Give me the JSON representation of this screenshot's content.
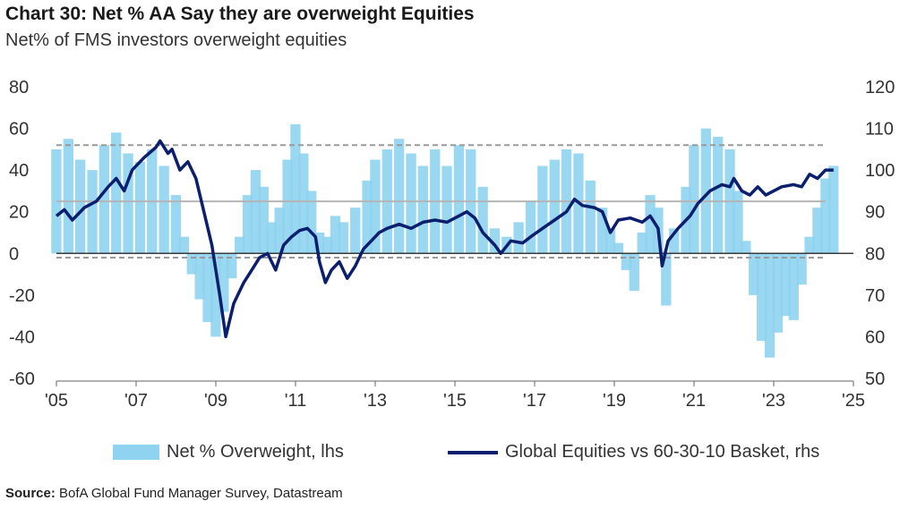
{
  "chart_data": {
    "type": "bar+line",
    "title": "Chart 30: Net % AA Say they are overweight Equities",
    "subtitle": "Net% of FMS investors overweight equities",
    "x_range": [
      2005,
      2025
    ],
    "x_ticks": [
      "'05",
      "'07",
      "'09",
      "'11",
      "'13",
      "'15",
      "'17",
      "'19",
      "'21",
      "'23",
      "'25"
    ],
    "y_left": {
      "min": -60,
      "max": 80,
      "ticks": [
        -60,
        -40,
        -20,
        0,
        20,
        40,
        60,
        80
      ]
    },
    "y_right": {
      "min": 50,
      "max": 120,
      "ticks": [
        50,
        60,
        70,
        80,
        90,
        100,
        110,
        120
      ]
    },
    "reference_lines_lhs": [
      {
        "value": 52,
        "style": "dashed"
      },
      {
        "value": 25,
        "style": "solid"
      },
      {
        "value": -2,
        "style": "dashed"
      }
    ],
    "zero_line": 0,
    "series": [
      {
        "name": "Net % Overweight, lhs",
        "axis": "left",
        "kind": "bar",
        "color": "#8fd3f0",
        "points": [
          [
            2005.0,
            50
          ],
          [
            2005.3,
            55
          ],
          [
            2005.6,
            45
          ],
          [
            2005.9,
            40
          ],
          [
            2006.2,
            52
          ],
          [
            2006.5,
            58
          ],
          [
            2006.8,
            48
          ],
          [
            2007.1,
            44
          ],
          [
            2007.4,
            50
          ],
          [
            2007.7,
            42
          ],
          [
            2008.0,
            28
          ],
          [
            2008.2,
            8
          ],
          [
            2008.4,
            -10
          ],
          [
            2008.6,
            -22
          ],
          [
            2008.8,
            -33
          ],
          [
            2009.0,
            -40
          ],
          [
            2009.2,
            -28
          ],
          [
            2009.4,
            -12
          ],
          [
            2009.6,
            8
          ],
          [
            2009.8,
            28
          ],
          [
            2010.0,
            40
          ],
          [
            2010.2,
            32
          ],
          [
            2010.4,
            15
          ],
          [
            2010.6,
            22
          ],
          [
            2010.8,
            45
          ],
          [
            2011.0,
            62
          ],
          [
            2011.2,
            48
          ],
          [
            2011.4,
            30
          ],
          [
            2011.6,
            10
          ],
          [
            2011.8,
            8
          ],
          [
            2012.0,
            18
          ],
          [
            2012.2,
            15
          ],
          [
            2012.5,
            22
          ],
          [
            2012.8,
            35
          ],
          [
            2013.0,
            45
          ],
          [
            2013.3,
            50
          ],
          [
            2013.6,
            55
          ],
          [
            2013.9,
            48
          ],
          [
            2014.2,
            42
          ],
          [
            2014.5,
            50
          ],
          [
            2014.8,
            42
          ],
          [
            2015.1,
            52
          ],
          [
            2015.4,
            50
          ],
          [
            2015.7,
            32
          ],
          [
            2016.0,
            12
          ],
          [
            2016.3,
            8
          ],
          [
            2016.6,
            15
          ],
          [
            2016.9,
            25
          ],
          [
            2017.2,
            42
          ],
          [
            2017.5,
            45
          ],
          [
            2017.8,
            50
          ],
          [
            2018.1,
            48
          ],
          [
            2018.4,
            35
          ],
          [
            2018.7,
            22
          ],
          [
            2018.9,
            12
          ],
          [
            2019.1,
            5
          ],
          [
            2019.3,
            -8
          ],
          [
            2019.5,
            -18
          ],
          [
            2019.7,
            10
          ],
          [
            2019.9,
            28
          ],
          [
            2020.1,
            22
          ],
          [
            2020.3,
            -25
          ],
          [
            2020.5,
            12
          ],
          [
            2020.8,
            32
          ],
          [
            2021.0,
            52
          ],
          [
            2021.3,
            60
          ],
          [
            2021.6,
            56
          ],
          [
            2021.9,
            50
          ],
          [
            2022.1,
            30
          ],
          [
            2022.3,
            6
          ],
          [
            2022.5,
            -20
          ],
          [
            2022.7,
            -42
          ],
          [
            2022.9,
            -50
          ],
          [
            2023.1,
            -38
          ],
          [
            2023.3,
            -30
          ],
          [
            2023.5,
            -32
          ],
          [
            2023.7,
            -15
          ],
          [
            2023.9,
            8
          ],
          [
            2024.1,
            22
          ],
          [
            2024.3,
            36
          ],
          [
            2024.5,
            42
          ]
        ]
      },
      {
        "name": "Global Equities vs 60-30-10 Basket, rhs",
        "axis": "right",
        "kind": "line",
        "color": "#0b1f6e",
        "points": [
          [
            2005.0,
            89
          ],
          [
            2005.2,
            90.5
          ],
          [
            2005.4,
            88
          ],
          [
            2005.7,
            91
          ],
          [
            2006.0,
            92.5
          ],
          [
            2006.3,
            96
          ],
          [
            2006.5,
            98
          ],
          [
            2006.7,
            95
          ],
          [
            2006.9,
            100
          ],
          [
            2007.2,
            103
          ],
          [
            2007.5,
            105.5
          ],
          [
            2007.6,
            107
          ],
          [
            2007.8,
            104
          ],
          [
            2007.9,
            105
          ],
          [
            2008.1,
            100
          ],
          [
            2008.3,
            102
          ],
          [
            2008.5,
            98
          ],
          [
            2008.7,
            90
          ],
          [
            2008.9,
            82
          ],
          [
            2009.1,
            70
          ],
          [
            2009.25,
            60
          ],
          [
            2009.45,
            68
          ],
          [
            2009.7,
            73
          ],
          [
            2009.9,
            76
          ],
          [
            2010.1,
            79
          ],
          [
            2010.3,
            80
          ],
          [
            2010.5,
            76
          ],
          [
            2010.7,
            82
          ],
          [
            2010.9,
            84
          ],
          [
            2011.1,
            85.5
          ],
          [
            2011.3,
            86
          ],
          [
            2011.5,
            84
          ],
          [
            2011.6,
            78
          ],
          [
            2011.75,
            73
          ],
          [
            2011.9,
            76
          ],
          [
            2012.1,
            78
          ],
          [
            2012.3,
            74
          ],
          [
            2012.5,
            77
          ],
          [
            2012.7,
            81
          ],
          [
            2012.9,
            83
          ],
          [
            2013.1,
            85
          ],
          [
            2013.3,
            86
          ],
          [
            2013.6,
            87
          ],
          [
            2013.9,
            86
          ],
          [
            2014.2,
            87.5
          ],
          [
            2014.5,
            88
          ],
          [
            2014.8,
            87.5
          ],
          [
            2015.1,
            89
          ],
          [
            2015.3,
            90
          ],
          [
            2015.5,
            88.5
          ],
          [
            2015.7,
            85
          ],
          [
            2016.0,
            82
          ],
          [
            2016.15,
            80
          ],
          [
            2016.4,
            83
          ],
          [
            2016.7,
            82.5
          ],
          [
            2016.9,
            84
          ],
          [
            2017.2,
            86
          ],
          [
            2017.5,
            88
          ],
          [
            2017.8,
            90
          ],
          [
            2018.0,
            93
          ],
          [
            2018.2,
            91.5
          ],
          [
            2018.5,
            91
          ],
          [
            2018.7,
            90
          ],
          [
            2018.9,
            85
          ],
          [
            2019.1,
            88
          ],
          [
            2019.4,
            88.5
          ],
          [
            2019.7,
            87.5
          ],
          [
            2019.9,
            89
          ],
          [
            2020.1,
            86
          ],
          [
            2020.2,
            77
          ],
          [
            2020.35,
            83
          ],
          [
            2020.6,
            86
          ],
          [
            2020.9,
            89
          ],
          [
            2021.1,
            92
          ],
          [
            2021.4,
            95
          ],
          [
            2021.7,
            96.5
          ],
          [
            2021.9,
            96
          ],
          [
            2022.0,
            98
          ],
          [
            2022.2,
            95
          ],
          [
            2022.4,
            94
          ],
          [
            2022.6,
            96
          ],
          [
            2022.8,
            94
          ],
          [
            2023.0,
            95
          ],
          [
            2023.2,
            96
          ],
          [
            2023.5,
            96.5
          ],
          [
            2023.7,
            96
          ],
          [
            2023.9,
            99
          ],
          [
            2024.1,
            98
          ],
          [
            2024.3,
            100
          ],
          [
            2024.5,
            100
          ]
        ]
      }
    ],
    "legend_position": "bottom"
  },
  "legend": {
    "bar_label": "Net % Overweight, lhs",
    "line_label": "Global Equities vs 60-30-10 Basket, rhs"
  },
  "source": {
    "label": "Source:",
    "text": "BofA Global Fund Manager Survey, Datastream"
  }
}
